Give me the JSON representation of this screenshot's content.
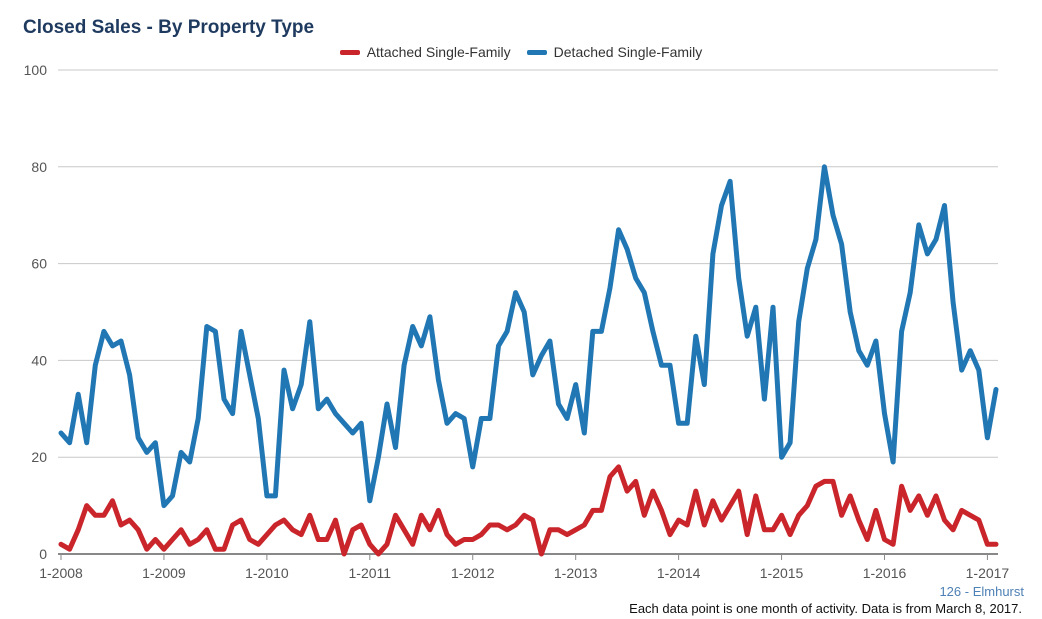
{
  "chart_data": {
    "type": "line",
    "title": "Closed Sales - By Property Type",
    "subtitle": "126 - Elmhurst",
    "caption": "Each data point is one month of activity. Data is from March 8, 2017.",
    "ylim": [
      0,
      100
    ],
    "yticks": [
      "0",
      "20",
      "40",
      "60",
      "80",
      "100"
    ],
    "xtick_labels": [
      "1-2008",
      "1-2009",
      "1-2010",
      "1-2011",
      "1-2012",
      "1-2013",
      "1-2014",
      "1-2015",
      "1-2016",
      "1-2017"
    ],
    "x_start": "2008-01",
    "x_end": "2017-02",
    "grid": true,
    "legend_position": "top-center",
    "series": [
      {
        "name": "Attached Single-Family",
        "color": "#c9252b",
        "values": [
          2,
          1,
          5,
          10,
          8,
          8,
          11,
          6,
          7,
          5,
          1,
          3,
          1,
          3,
          5,
          2,
          3,
          5,
          1,
          1,
          6,
          7,
          3,
          2,
          4,
          6,
          7,
          5,
          4,
          8,
          3,
          3,
          7,
          0,
          5,
          6,
          2,
          0,
          2,
          8,
          5,
          2,
          8,
          5,
          9,
          4,
          2,
          3,
          3,
          4,
          6,
          6,
          5,
          6,
          8,
          7,
          0,
          5,
          5,
          4,
          5,
          6,
          9,
          9,
          16,
          18,
          13,
          15,
          8,
          13,
          9,
          4,
          7,
          6,
          13,
          6,
          11,
          7,
          10,
          13,
          4,
          12,
          5,
          5,
          8,
          4,
          8,
          10,
          14,
          15,
          15,
          8,
          12,
          7,
          3,
          9,
          3,
          2,
          14,
          9,
          12,
          8,
          12,
          7,
          5,
          9,
          8,
          7,
          2,
          2
        ]
      },
      {
        "name": "Detached Single-Family",
        "color": "#2177b4",
        "values": [
          25,
          23,
          33,
          23,
          39,
          46,
          43,
          44,
          37,
          24,
          21,
          23,
          10,
          12,
          21,
          19,
          28,
          47,
          46,
          32,
          29,
          46,
          37,
          28,
          12,
          12,
          38,
          30,
          35,
          48,
          30,
          32,
          29,
          27,
          25,
          27,
          11,
          20,
          31,
          22,
          39,
          47,
          43,
          49,
          36,
          27,
          29,
          28,
          18,
          28,
          28,
          43,
          46,
          54,
          50,
          37,
          41,
          44,
          31,
          28,
          35,
          25,
          46,
          46,
          55,
          67,
          63,
          57,
          54,
          46,
          39,
          39,
          27,
          27,
          45,
          35,
          62,
          72,
          77,
          57,
          45,
          51,
          32,
          51,
          20,
          23,
          48,
          59,
          65,
          80,
          70,
          64,
          50,
          42,
          39,
          44,
          29,
          19,
          46,
          54,
          68,
          62,
          65,
          72,
          52,
          38,
          42,
          38,
          24,
          34
        ]
      }
    ]
  }
}
